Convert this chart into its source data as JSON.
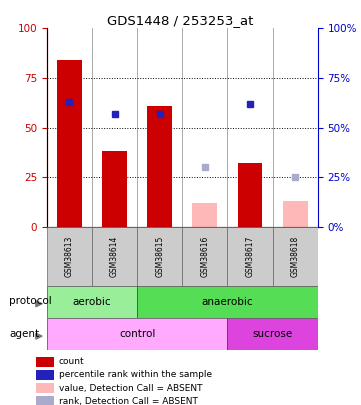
{
  "title": "GDS1448 / 253253_at",
  "samples": [
    "GSM38613",
    "GSM38614",
    "GSM38615",
    "GSM38616",
    "GSM38617",
    "GSM38618"
  ],
  "bar_heights_red": [
    84,
    38,
    61,
    null,
    32,
    null
  ],
  "bar_heights_pink": [
    null,
    null,
    null,
    12,
    null,
    13
  ],
  "blue_square_y": [
    63,
    57,
    57,
    null,
    62,
    null
  ],
  "lightblue_square_y": [
    null,
    null,
    null,
    30,
    null,
    25
  ],
  "protocol_groups": [
    {
      "label": "aerobic",
      "start": 0,
      "end": 2,
      "color": "#aaeea a"
    },
    {
      "label": "anaerobic",
      "start": 2,
      "end": 6,
      "color": "#66dd66"
    }
  ],
  "agent_groups": [
    {
      "label": "control",
      "start": 0,
      "end": 4,
      "color": "#ffaaff"
    },
    {
      "label": "sucrose",
      "start": 4,
      "end": 6,
      "color": "#ee55ee"
    }
  ],
  "ylim": [
    0,
    100
  ],
  "yticks": [
    0,
    25,
    50,
    75,
    100
  ],
  "bar_color_red": "#cc0000",
  "bar_color_pink": "#ffb8b8",
  "blue_color": "#2222bb",
  "lightblue_color": "#aaaacc",
  "bar_width": 0.55,
  "legend_items": [
    {
      "color": "#cc0000",
      "label": "count"
    },
    {
      "color": "#2222bb",
      "label": "percentile rank within the sample"
    },
    {
      "color": "#ffb8b8",
      "label": "value, Detection Call = ABSENT"
    },
    {
      "color": "#aaaacc",
      "label": "rank, Detection Call = ABSENT"
    }
  ],
  "yaxis_left_color": "#cc0000",
  "yaxis_right_color": "#0000cc",
  "protocol_aerobic_color": "#99ee99",
  "protocol_anaerobic_color": "#55dd55",
  "agent_control_color": "#ffaaff",
  "agent_sucrose_color": "#dd44dd"
}
